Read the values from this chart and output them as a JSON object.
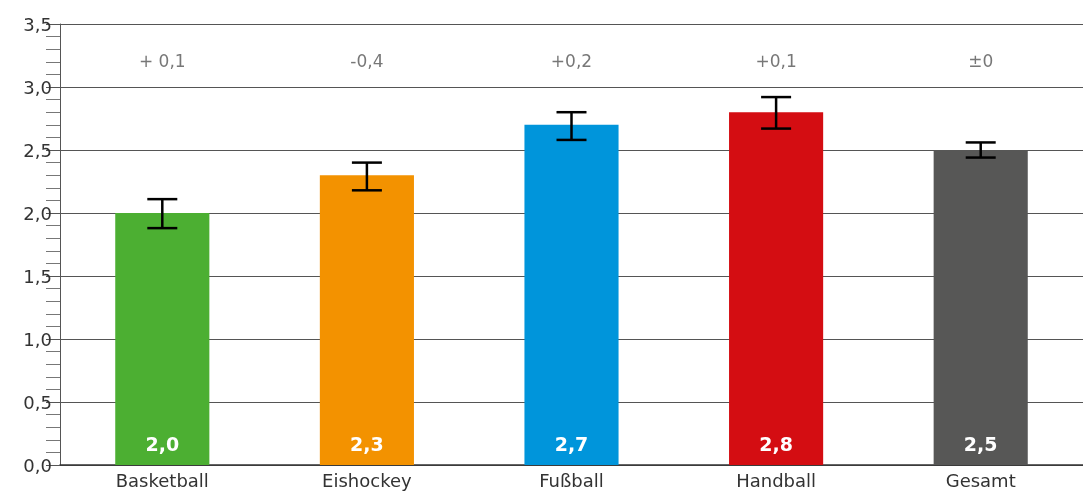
{
  "chart_data": {
    "type": "bar",
    "categories": [
      "Basketball",
      "Eishockey",
      "Fußball",
      "Handball",
      "Gesamt"
    ],
    "values": [
      2.0,
      2.3,
      2.7,
      2.8,
      2.5
    ],
    "colors": [
      "#4caf32",
      "#f39200",
      "#0095db",
      "#d40d12",
      "#575756"
    ],
    "errors": [
      [
        1.88,
        2.11
      ],
      [
        2.18,
        2.4
      ],
      [
        2.58,
        2.8
      ],
      [
        2.67,
        2.92
      ],
      [
        2.44,
        2.56
      ]
    ],
    "value_labels": [
      "2,0",
      "2,3",
      "2,7",
      "2,8",
      "2,5"
    ],
    "ylim": [
      0,
      3.5
    ],
    "yticks": [
      {
        "value": 0,
        "label": "0,0"
      },
      {
        "value": 0.5,
        "label": "0,5"
      },
      {
        "value": 1,
        "label": "1,0"
      },
      {
        "value": 1.5,
        "label": "1,5"
      },
      {
        "value": 2,
        "label": "2,0"
      },
      {
        "value": 2.5,
        "label": "2,5"
      },
      {
        "value": 3,
        "label": "3,0"
      },
      {
        "value": 3.5,
        "label": "3,5"
      }
    ],
    "grid": "y",
    "annotations": [
      "+ 0,1",
      "-0,4",
      "+0,2",
      "+0,1",
      "±0"
    ]
  }
}
